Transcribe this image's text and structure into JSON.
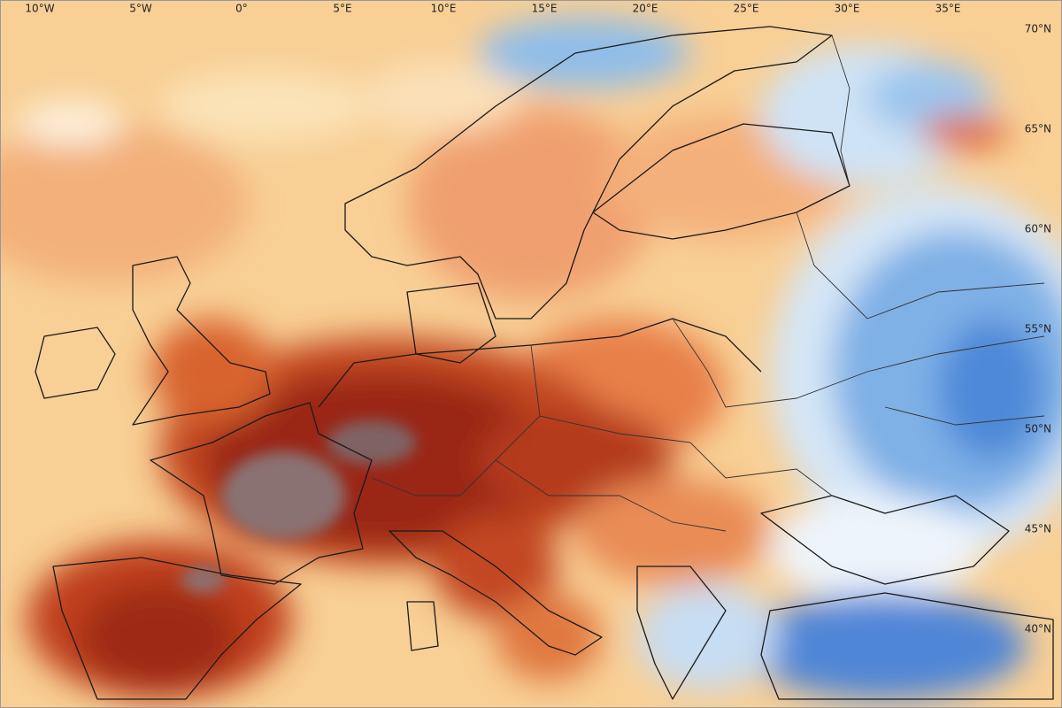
{
  "map": {
    "lon_labels": [
      "10°W",
      "5°W",
      "0°",
      "5°E",
      "10°E",
      "15°E",
      "20°E",
      "25°E",
      "30°E",
      "35°E"
    ],
    "lat_labels": [
      "70°N",
      "65°N",
      "60°N",
      "55°N",
      "50°N",
      "45°N",
      "40°N"
    ]
  }
}
